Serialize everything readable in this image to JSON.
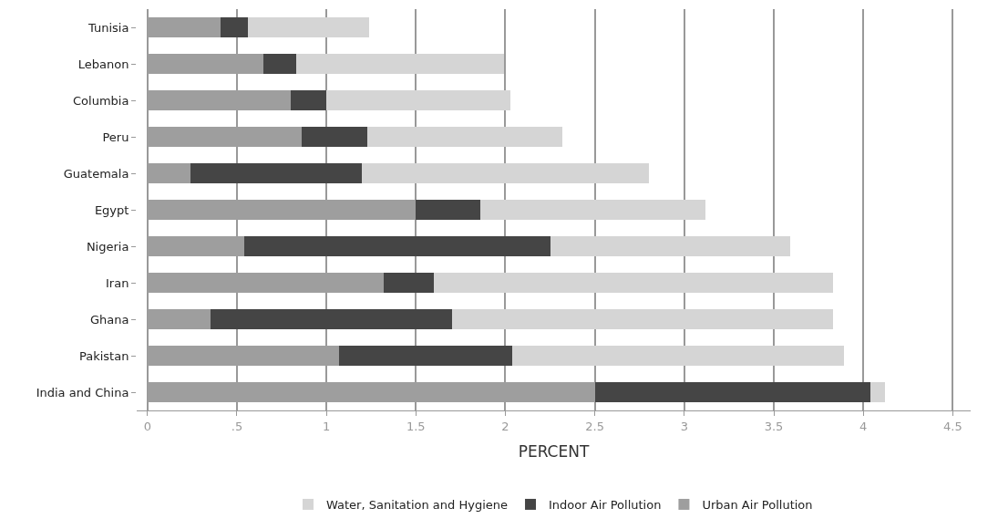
{
  "chart_data": {
    "type": "bar",
    "orientation": "horizontal",
    "stacked": true,
    "xlabel": "PERCENT",
    "categories": [
      "Tunisia",
      "Lebanon",
      "Columbia",
      "Peru",
      "Guatemala",
      "Egypt",
      "Nigeria",
      "Iran",
      "Ghana",
      "Pakistan",
      "India and China"
    ],
    "series": [
      {
        "name": "Urban Air Pollution",
        "color": "#9e9e9e",
        "values": [
          0.41,
          0.65,
          0.8,
          0.86,
          0.24,
          1.5,
          0.54,
          1.32,
          0.35,
          1.07,
          2.5
        ]
      },
      {
        "name": "Indoor Air Pollution",
        "color": "#454545",
        "values": [
          0.15,
          0.18,
          0.2,
          0.37,
          0.96,
          0.36,
          1.71,
          0.28,
          1.35,
          0.97,
          1.54
        ]
      },
      {
        "name": "Water, Sanitation and Hygiene",
        "color": "#d5d5d5",
        "values": [
          0.68,
          1.16,
          1.03,
          1.09,
          1.6,
          1.26,
          1.34,
          2.23,
          2.13,
          1.85,
          0.08
        ]
      }
    ],
    "xlim": [
      -0.06,
      4.6
    ],
    "xticks": [
      0,
      {
        "value": 0.5,
        "label": ".5"
      },
      1,
      1.5,
      2,
      2.5,
      3,
      3.5,
      4,
      4.5
    ],
    "grid": "x",
    "legend": "bottom"
  }
}
